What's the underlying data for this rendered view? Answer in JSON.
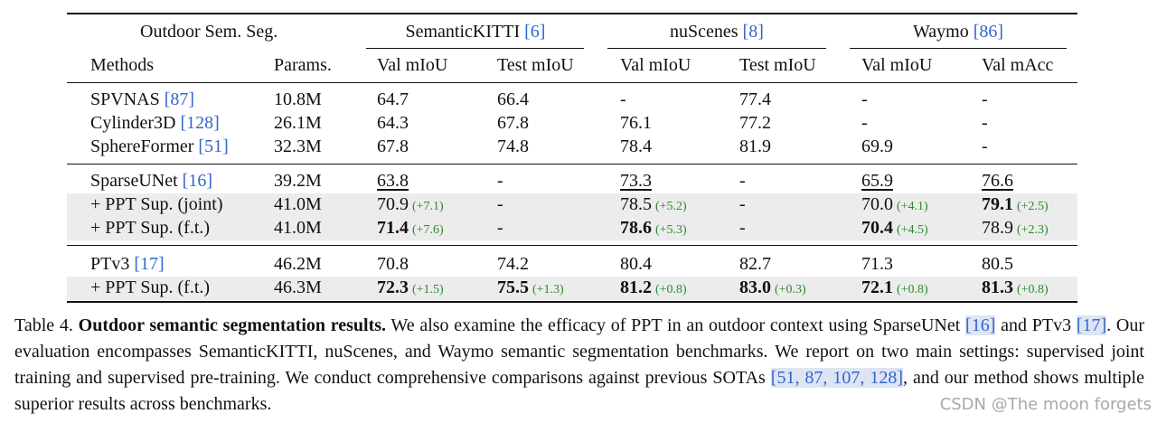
{
  "table": {
    "corner_title": "Outdoor Sem. Seg.",
    "col_methods": "Methods",
    "col_params": "Params.",
    "groups": [
      {
        "name": "SemanticKITTI",
        "cite": "6",
        "metrics": [
          "Val mIoU",
          "Test mIoU"
        ]
      },
      {
        "name": "nuScenes",
        "cite": "8",
        "metrics": [
          "Val mIoU",
          "Test mIoU"
        ]
      },
      {
        "name": "Waymo",
        "cite": "86",
        "metrics": [
          "Val mIoU",
          "Val mAcc"
        ]
      }
    ],
    "rows": [
      {
        "method": "SPVNAS ",
        "cite": "87",
        "params": "10.8M",
        "cells": [
          {
            "v": "64.7"
          },
          {
            "v": "66.4"
          },
          {
            "v": "-"
          },
          {
            "v": "77.4"
          },
          {
            "v": "-"
          },
          {
            "v": "-"
          }
        ]
      },
      {
        "method": "Cylinder3D ",
        "cite": "128",
        "params": "26.1M",
        "cells": [
          {
            "v": "64.3"
          },
          {
            "v": "67.8"
          },
          {
            "v": "76.1"
          },
          {
            "v": "77.2"
          },
          {
            "v": "-"
          },
          {
            "v": "-"
          }
        ]
      },
      {
        "method": "SphereFormer ",
        "cite": "51",
        "params": "32.3M",
        "cells": [
          {
            "v": "67.8"
          },
          {
            "v": "74.8"
          },
          {
            "v": "78.4"
          },
          {
            "v": "81.9"
          },
          {
            "v": "69.9"
          },
          {
            "v": "-"
          }
        ]
      },
      {
        "method": "SparseUNet ",
        "cite": "16",
        "params": "39.2M",
        "cells": [
          {
            "v": "63.8",
            "u": true
          },
          {
            "v": "-"
          },
          {
            "v": "73.3",
            "u": true
          },
          {
            "v": "-"
          },
          {
            "v": "65.9",
            "u": true
          },
          {
            "v": "76.6",
            "u": true
          }
        ]
      },
      {
        "method": "+ PPT Sup. (joint)",
        "cite": "",
        "params": "41.0M",
        "shade": true,
        "cells": [
          {
            "v": "70.9",
            "d": "(+7.1)"
          },
          {
            "v": "-"
          },
          {
            "v": "78.5",
            "d": "(+5.2)"
          },
          {
            "v": "-"
          },
          {
            "v": "70.0",
            "d": "(+4.1)"
          },
          {
            "v": "79.1",
            "d": "(+2.5)",
            "b": true
          }
        ]
      },
      {
        "method": "+ PPT Sup. (f.t.)",
        "cite": "",
        "params": "41.0M",
        "shade": true,
        "cells": [
          {
            "v": "71.4",
            "d": "(+7.6)",
            "b": true
          },
          {
            "v": "-"
          },
          {
            "v": "78.6",
            "d": "(+5.3)",
            "b": true
          },
          {
            "v": "-"
          },
          {
            "v": "70.4",
            "d": "(+4.5)",
            "b": true
          },
          {
            "v": "78.9",
            "d": "(+2.3)"
          }
        ]
      },
      {
        "method": "PTv3 ",
        "cite": "17",
        "params": "46.2M",
        "cells": [
          {
            "v": "70.8"
          },
          {
            "v": "74.2"
          },
          {
            "v": "80.4"
          },
          {
            "v": "82.7"
          },
          {
            "v": "71.3"
          },
          {
            "v": "80.5"
          }
        ]
      },
      {
        "method": "+ PPT Sup. (f.t.)",
        "cite": "",
        "params": "46.3M",
        "shade": true,
        "cells": [
          {
            "v": "72.3",
            "d": "(+1.5)",
            "b": true
          },
          {
            "v": "75.5",
            "d": "(+1.3)",
            "b": true
          },
          {
            "v": "81.2",
            "d": "(+0.8)",
            "b": true
          },
          {
            "v": "83.0",
            "d": "(+0.3)",
            "b": true
          },
          {
            "v": "72.1",
            "d": "(+0.8)",
            "b": true
          },
          {
            "v": "81.3",
            "d": "(+0.8)",
            "b": true
          }
        ]
      }
    ]
  },
  "caption": {
    "label": "Table 4.",
    "bold": "Outdoor semantic segmentation results.",
    "p1": " We also examine the efficacy of PPT in an outdoor context using SparseUNet ",
    "c1": "[16]",
    "p2": " and PTv3 ",
    "c2": "[17]",
    "p3": ". Our evaluation encompasses SemanticKITTI, nuScenes, and Waymo semantic segmentation benchmarks. We report on two main settings: supervised joint training and supervised pre-training. We conduct comprehensive comparisons against previous SOTAs ",
    "c3": "[51, 87, 107, 128]",
    "p4": ", and our method shows multiple superior results across benchmarks."
  },
  "watermark": "CSDN @The moon forgets"
}
